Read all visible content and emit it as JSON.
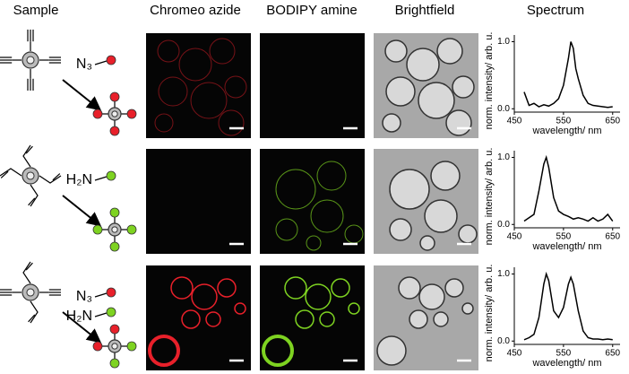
{
  "headers": [
    "Sample",
    "Chromeo azide",
    "BODIPY amine",
    "Brightfield",
    "Spectrum"
  ],
  "rows": [
    {
      "reagents": [
        "N₃"
      ]
    },
    {
      "reagents": [
        "H₂N"
      ]
    },
    {
      "reagents": [
        "N₃",
        "H₂N"
      ]
    }
  ],
  "chart_data": [
    {
      "type": "line",
      "xlabel": "wavelength/ nm",
      "ylabel": "norm. intensity/ arb. u.",
      "color": "#000000",
      "x": [
        470,
        480,
        490,
        500,
        510,
        520,
        530,
        540,
        550,
        560,
        565,
        570,
        575,
        580,
        590,
        600,
        610,
        620,
        630,
        640,
        650
      ],
      "values": [
        0.25,
        0.05,
        0.08,
        0.03,
        0.06,
        0.04,
        0.08,
        0.15,
        0.35,
        0.75,
        1.0,
        0.9,
        0.6,
        0.45,
        0.2,
        0.08,
        0.05,
        0.04,
        0.03,
        0.02,
        0.03
      ],
      "xlim": [
        450,
        665
      ],
      "ylim": [
        -0.05,
        1.1
      ],
      "xticks": [
        450,
        550,
        650
      ],
      "yticks": [
        {
          "value": 0,
          "label": "0.0"
        },
        {
          "value": 1,
          "label": "1.0"
        }
      ]
    },
    {
      "type": "line",
      "xlabel": "wavelength/ nm",
      "ylabel": "norm. intensity/ arb. u.",
      "color": "#000000",
      "x": [
        470,
        480,
        490,
        500,
        510,
        515,
        520,
        530,
        540,
        550,
        560,
        570,
        580,
        590,
        600,
        610,
        620,
        630,
        640,
        650
      ],
      "values": [
        0.05,
        0.1,
        0.15,
        0.5,
        0.9,
        1.0,
        0.85,
        0.4,
        0.2,
        0.15,
        0.12,
        0.08,
        0.1,
        0.08,
        0.05,
        0.1,
        0.05,
        0.08,
        0.15,
        0.05
      ],
      "xlim": [
        450,
        665
      ],
      "ylim": [
        -0.05,
        1.1
      ],
      "xticks": [
        450,
        550,
        650
      ],
      "yticks": [
        {
          "value": 0,
          "label": "0.0"
        },
        {
          "value": 1,
          "label": "1.0"
        }
      ]
    },
    {
      "type": "line",
      "xlabel": "wavelength/ nm",
      "ylabel": "norm. intensity/ arb. u.",
      "color": "#000000",
      "x": [
        470,
        480,
        490,
        500,
        510,
        515,
        520,
        530,
        540,
        550,
        560,
        565,
        570,
        580,
        590,
        600,
        610,
        620,
        630,
        640,
        650
      ],
      "values": [
        0.02,
        0.05,
        0.1,
        0.35,
        0.85,
        1.0,
        0.9,
        0.45,
        0.35,
        0.5,
        0.85,
        0.95,
        0.85,
        0.45,
        0.15,
        0.05,
        0.03,
        0.03,
        0.02,
        0.03,
        0.02
      ],
      "xlim": [
        450,
        665
      ],
      "ylim": [
        -0.05,
        1.1
      ],
      "xticks": [
        450,
        550,
        650
      ],
      "yticks": [
        {
          "value": 0,
          "label": "0.0"
        },
        {
          "value": 1,
          "label": "1.0"
        }
      ]
    }
  ]
}
